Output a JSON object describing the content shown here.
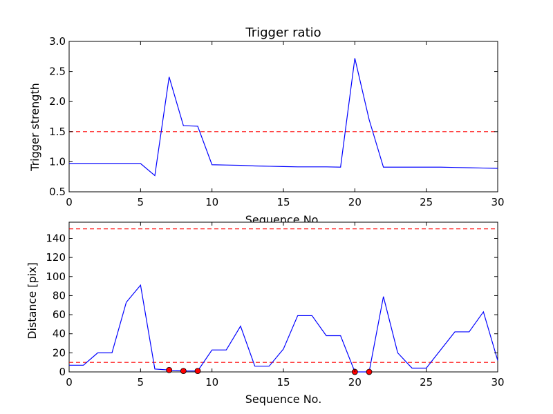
{
  "chart_data": [
    {
      "type": "line",
      "title": "Trigger ratio",
      "xlabel": "Sequence No.",
      "ylabel": "Trigger strength",
      "xlim": [
        0,
        30
      ],
      "ylim": [
        0.5,
        3.0
      ],
      "xticks": [
        0,
        5,
        10,
        15,
        20,
        25,
        30
      ],
      "yticks": [
        "0.5",
        "1.0",
        "1.5",
        "2.0",
        "2.5",
        "3.0"
      ],
      "grid": false,
      "series": [
        {
          "color": "#0000ff",
          "x": [
            0,
            1,
            2,
            3,
            4,
            5,
            6,
            7,
            8,
            9,
            10,
            11,
            12,
            13,
            14,
            15,
            16,
            17,
            18,
            19,
            20,
            21,
            22,
            23,
            24,
            25,
            26,
            27,
            28,
            29,
            30
          ],
          "values": [
            0.97,
            0.97,
            0.97,
            0.97,
            0.97,
            0.97,
            0.77,
            2.41,
            1.6,
            1.59,
            0.95,
            0.945,
            0.94,
            0.93,
            0.925,
            0.92,
            0.915,
            0.915,
            0.915,
            0.91,
            2.72,
            1.7,
            0.91,
            0.91,
            0.91,
            0.91,
            0.91,
            0.905,
            0.9,
            0.895,
            0.89
          ]
        }
      ],
      "hlines": [
        {
          "y": 1.5,
          "color": "#ff0000",
          "style": "dashed"
        }
      ],
      "markers": []
    },
    {
      "type": "line",
      "title": "",
      "xlabel": "Sequence No.",
      "ylabel": "Distance [pix]",
      "xlim": [
        0,
        30
      ],
      "ylim": [
        0,
        157
      ],
      "xticks": [
        0,
        5,
        10,
        15,
        20,
        25,
        30
      ],
      "yticks": [
        "0",
        "20",
        "40",
        "60",
        "80",
        "100",
        "120",
        "140"
      ],
      "grid": false,
      "series": [
        {
          "color": "#0000ff",
          "x": [
            0,
            1,
            2,
            3,
            4,
            5,
            6,
            7,
            8,
            9,
            10,
            11,
            12,
            13,
            14,
            15,
            16,
            17,
            18,
            19,
            20,
            21,
            22,
            23,
            24,
            25,
            26,
            27,
            28,
            29,
            30
          ],
          "values": [
            7,
            7,
            20,
            20,
            73,
            91,
            3,
            2,
            1,
            1,
            23,
            23,
            48,
            6,
            6,
            24,
            59,
            59,
            38,
            38,
            0,
            0,
            79,
            20,
            4,
            4,
            23,
            42,
            42,
            63,
            12
          ]
        }
      ],
      "hlines": [
        {
          "y": 150,
          "color": "#ff0000",
          "style": "dashed"
        },
        {
          "y": 10,
          "color": "#ff0000",
          "style": "dashed"
        }
      ],
      "markers": [
        {
          "x": 7,
          "y": 2,
          "color": "#ff0000"
        },
        {
          "x": 8,
          "y": 1,
          "color": "#ff0000"
        },
        {
          "x": 9,
          "y": 1,
          "color": "#ff0000"
        },
        {
          "x": 20,
          "y": 0,
          "color": "#ff0000"
        },
        {
          "x": 21,
          "y": 0,
          "color": "#ff0000"
        }
      ]
    }
  ]
}
